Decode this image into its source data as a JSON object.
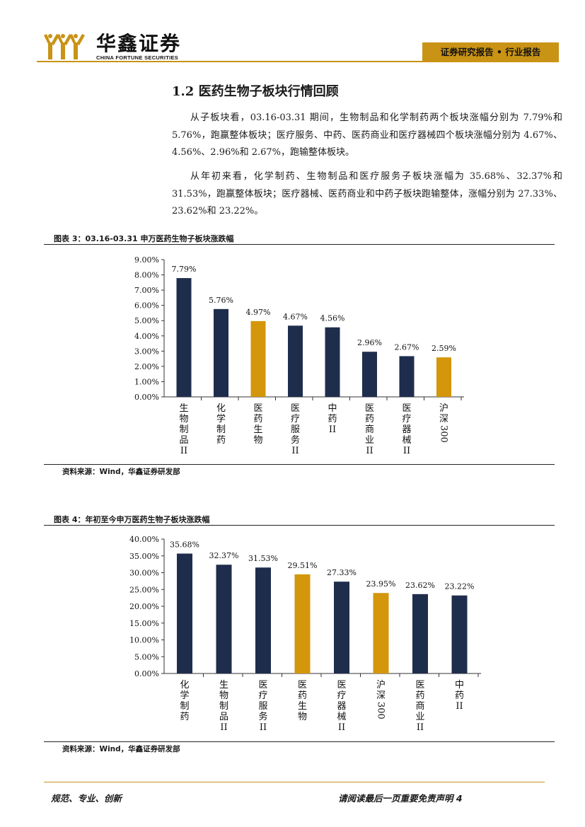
{
  "header": {
    "logo_cn": "华鑫证券",
    "logo_en": "CHINA FORTUNE SECURITIES",
    "tag": "证券研究报告 • 行业报告",
    "brand_color": "#c99315"
  },
  "section": {
    "title": "1.2 医药生物子板块行情回顾",
    "paragraphs": [
      "从子板块看，03.16-03.31 期间，生物制品和化学制药两个板块涨幅分别为 7.79%和 5.76%，跑赢整体板块；医疗服务、中药、医药商业和医疗器械四个板块涨幅分别为 4.67%、4.56%、2.96%和 2.67%，跑输整体板块。",
      "从年初来看，化学制药、生物制品和医疗服务子板块涨幅为 35.68%、32.37%和 31.53%，跑赢整体板块；医疗器械、医药商业和中药子板块跑输整体，涨幅分别为 27.33%、23.62%和 23.22%。"
    ]
  },
  "figures": [
    {
      "title": "图表 3：03.16-03.31 申万医药生物子板块涨跌幅",
      "source": "资料来源：Wind，华鑫证券研发部"
    },
    {
      "title": "图表 4：年初至今申万医药生物子板块涨跌幅",
      "source": "资料来源：Wind，华鑫证券研发部"
    }
  ],
  "chart_data": [
    {
      "type": "bar",
      "categories": [
        "生物制品II",
        "化学制药",
        "医药生物",
        "医疗服务II",
        "中药II",
        "医药商业II",
        "医疗器械II",
        "沪深300"
      ],
      "values": [
        7.79,
        5.76,
        4.97,
        4.67,
        4.56,
        2.96,
        2.67,
        2.59
      ],
      "data_labels": [
        "7.79%",
        "5.76%",
        "4.97%",
        "4.67%",
        "4.56%",
        "2.96%",
        "2.67%",
        "2.59%"
      ],
      "highlight": [
        false,
        false,
        true,
        false,
        false,
        false,
        false,
        true
      ],
      "ylim": [
        0,
        9
      ],
      "yticks": [
        0,
        1,
        2,
        3,
        4,
        5,
        6,
        7,
        8,
        9
      ],
      "ytick_labels": [
        "0.00%",
        "1.00%",
        "2.00%",
        "3.00%",
        "4.00%",
        "5.00%",
        "6.00%",
        "7.00%",
        "8.00%",
        "9.00%"
      ],
      "bar_color": "#1f2d4d",
      "highlight_color": "#d4960a",
      "grid": false
    },
    {
      "type": "bar",
      "categories": [
        "化学制药",
        "生物制品II",
        "医疗服务II",
        "医药生物",
        "医疗器械II",
        "沪深300",
        "医药商业II",
        "中药II"
      ],
      "values": [
        35.68,
        32.37,
        31.53,
        29.51,
        27.33,
        23.95,
        23.62,
        23.22
      ],
      "data_labels": [
        "35.68%",
        "32.37%",
        "31.53%",
        "29.51%",
        "27.33%",
        "23.95%",
        "23.62%",
        "23.22%"
      ],
      "highlight": [
        false,
        false,
        false,
        true,
        false,
        true,
        false,
        false
      ],
      "ylim": [
        0,
        40
      ],
      "yticks": [
        0,
        5,
        10,
        15,
        20,
        25,
        30,
        35,
        40
      ],
      "ytick_labels": [
        "0.00%",
        "5.00%",
        "10.00%",
        "15.00%",
        "20.00%",
        "25.00%",
        "30.00%",
        "35.00%",
        "40.00%"
      ],
      "bar_color": "#1f2d4d",
      "highlight_color": "#d4960a",
      "grid": false
    }
  ],
  "footer": {
    "left": "规范、专业、创新",
    "right": "请阅读最后一页重要免责声明 4"
  }
}
